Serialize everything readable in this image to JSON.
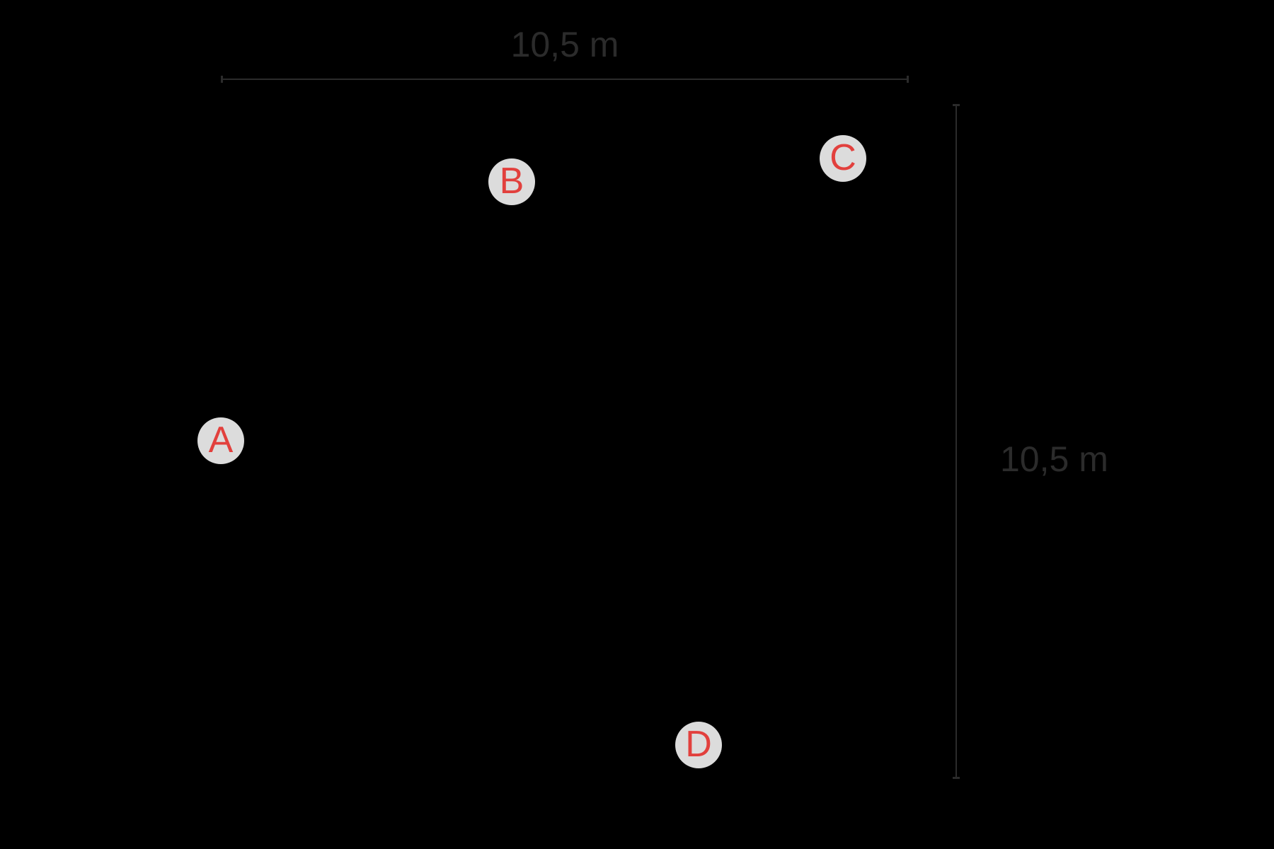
{
  "figure": {
    "dimensions": {
      "top": {
        "label": "10,5 m"
      },
      "right": {
        "label": "10,5 m"
      }
    },
    "points": [
      {
        "label": "A"
      },
      {
        "label": "B"
      },
      {
        "label": "C"
      },
      {
        "label": "D"
      }
    ],
    "theme": {
      "background": "#000000",
      "ink": "#2b2b2b",
      "marker_fill": "#dcdcdc",
      "marker_letter": "#e2403d"
    }
  }
}
